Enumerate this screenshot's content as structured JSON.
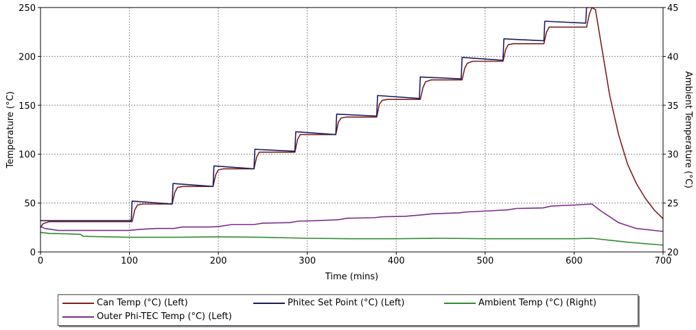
{
  "chart_data": {
    "type": "line",
    "xlabel": "Time (mins)",
    "ylabel": "Temperature (°C)",
    "y2label": "Ambient Temperature (°C)",
    "xlim": [
      0,
      700
    ],
    "ylim": [
      0,
      250
    ],
    "y2lim": [
      20,
      45
    ],
    "xticks": [
      "0",
      "100",
      "200",
      "300",
      "400",
      "500",
      "600",
      "700"
    ],
    "yticks": [
      "0",
      "50",
      "100",
      "150",
      "200",
      "250"
    ],
    "y2ticks": [
      "20",
      "25",
      "30",
      "35",
      "40",
      "45"
    ],
    "grid": true,
    "legend_position": "bottom",
    "series": [
      {
        "name": "Can Temp (°C) (Left)",
        "axis": "left",
        "color": "#7b1e1e",
        "x": [
          0,
          3,
          10,
          103,
          106,
          109,
          115,
          148,
          151,
          154,
          160,
          194,
          197,
          200,
          206,
          240,
          243,
          246,
          252,
          286,
          289,
          292,
          298,
          332,
          335,
          338,
          344,
          378,
          381,
          384,
          390,
          427,
          430,
          433,
          439,
          474,
          477,
          480,
          486,
          520,
          523,
          526,
          532,
          566,
          569,
          572,
          578,
          614,
          617,
          620,
          624,
          630,
          640,
          650,
          660,
          670,
          680,
          690,
          700
        ],
        "y": [
          25,
          29,
          31,
          31,
          43,
          48,
          49,
          49,
          61,
          66,
          67,
          67,
          79,
          84,
          85,
          85,
          97,
          102,
          102,
          102,
          115,
          120,
          120,
          120,
          133,
          137,
          138,
          138,
          151,
          155,
          156,
          156,
          168,
          174,
          176,
          176,
          188,
          193,
          195,
          195,
          207,
          212,
          213,
          213,
          225,
          230,
          230,
          230,
          243,
          250,
          248,
          215,
          160,
          120,
          90,
          70,
          55,
          43,
          34
        ]
      },
      {
        "name": "Phitec Set Point (°C) (Left)",
        "axis": "left",
        "color": "#1a1a5e",
        "x": [
          0,
          4,
          102,
          103,
          148,
          149,
          194,
          195,
          240,
          241,
          286,
          287,
          332,
          333,
          378,
          379,
          426,
          427,
          473,
          474,
          520,
          521,
          566,
          567,
          613,
          614,
          617
        ],
        "y": [
          32,
          32,
          32,
          52,
          49,
          70,
          67,
          88,
          85,
          105,
          103,
          123,
          120,
          141,
          139,
          160,
          157,
          179,
          177,
          199,
          196,
          218,
          216,
          236,
          234,
          250,
          250
        ]
      },
      {
        "name": "Ambient Temp (°C) (Right)",
        "axis": "right",
        "color": "#2e8b2e",
        "x": [
          0,
          10,
          30,
          45,
          48,
          50,
          100,
          150,
          200,
          250,
          300,
          350,
          400,
          450,
          500,
          550,
          600,
          620,
          640,
          660,
          680,
          700
        ],
        "y": [
          22.0,
          21.9,
          21.85,
          21.8,
          21.6,
          21.6,
          21.5,
          21.5,
          21.55,
          21.5,
          21.4,
          21.35,
          21.35,
          21.4,
          21.35,
          21.35,
          21.35,
          21.4,
          21.2,
          21.0,
          20.85,
          20.7
        ]
      },
      {
        "name": "Outer Phi-TEC Temp (°C) (Left)",
        "axis": "left",
        "color": "#7a2a8a",
        "x": [
          0,
          5,
          20,
          100,
          110,
          130,
          150,
          160,
          190,
          200,
          215,
          240,
          250,
          280,
          290,
          310,
          335,
          345,
          375,
          385,
          410,
          430,
          440,
          470,
          480,
          505,
          525,
          535,
          565,
          575,
          600,
          620,
          630,
          650,
          670,
          700
        ],
        "y": [
          26,
          24,
          22,
          22,
          23,
          24,
          24,
          25.5,
          25.5,
          26,
          28,
          28,
          29.5,
          30,
          31.5,
          32,
          33,
          34.5,
          35,
          36,
          36.5,
          38,
          39,
          40,
          41,
          42,
          43,
          44.5,
          45,
          47,
          48,
          49,
          42,
          30,
          24,
          21
        ]
      }
    ]
  }
}
